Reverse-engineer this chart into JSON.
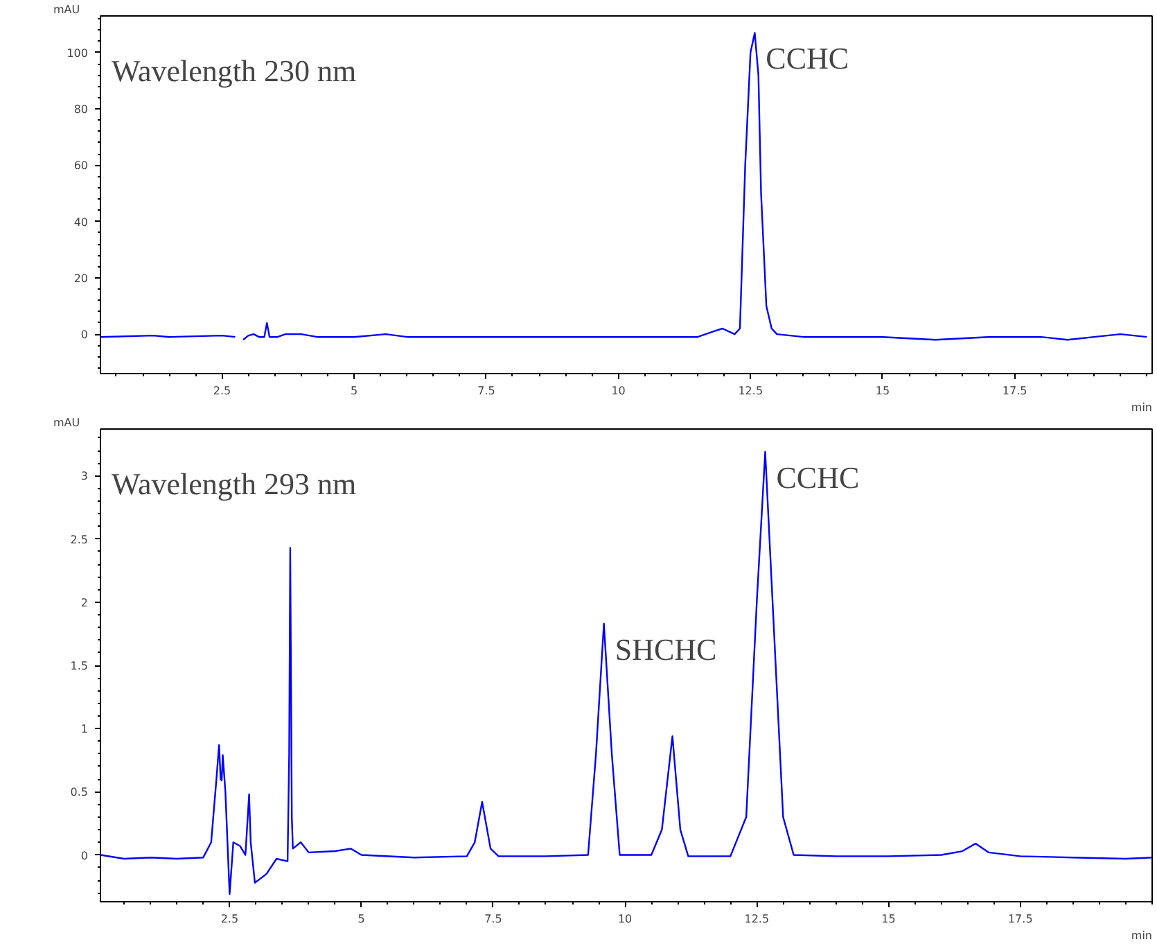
{
  "chart_data": [
    {
      "type": "line",
      "title": "Wavelength 230 nm",
      "xlabel": "min",
      "ylabel": "mAU",
      "x": [
        0.2,
        1.2,
        1.5,
        2.5,
        2.75,
        2.8,
        2.87,
        2.9,
        3.0,
        3.1,
        3.2,
        3.3,
        3.35,
        3.4,
        3.55,
        3.7,
        4.0,
        4.3,
        5.0,
        5.6,
        6.0,
        7.5,
        8.5,
        10.0,
        11.5,
        11.8,
        11.97,
        12.2,
        12.3,
        12.4,
        12.5,
        12.58,
        12.65,
        12.7,
        12.8,
        12.9,
        13.0,
        13.5,
        15.0,
        16.0,
        17.0,
        18.0,
        18.5,
        19.0,
        19.5,
        20.0
      ],
      "series": [
        {
          "color": "#0000ff",
          "values": [
            -1,
            -0.5,
            -1,
            -0.5,
            -1,
            null,
            null,
            -2,
            -0.5,
            0,
            -1,
            -1,
            4,
            -1,
            -1,
            0,
            0,
            -1,
            -1,
            0,
            -1,
            -1,
            -1,
            -1,
            -1,
            1,
            2,
            0,
            2,
            60,
            100,
            107,
            92,
            50,
            10,
            2,
            0,
            -1,
            -1,
            -2,
            -1,
            -1,
            -2,
            -1,
            0,
            -1
          ]
        }
      ],
      "xlim": [
        0.2,
        20.1
      ],
      "ylim": [
        -14,
        113
      ],
      "xticks": [
        2.5,
        5,
        7.5,
        10,
        12.5,
        15,
        17.5
      ],
      "yticks": [
        0,
        20,
        40,
        60,
        80,
        100
      ],
      "annotations": [
        {
          "text": "CCHC",
          "x": 12.58,
          "y": 107
        }
      ],
      "grid": false
    },
    {
      "type": "line",
      "title": "Wavelength 293 nm",
      "xlabel": "min",
      "ylabel": "mAU",
      "x": [
        0.05,
        0.5,
        1.0,
        1.5,
        2.0,
        2.15,
        2.25,
        2.3,
        2.33,
        2.35,
        2.37,
        2.42,
        2.5,
        2.57,
        2.7,
        2.8,
        2.87,
        2.9,
        2.98,
        3.2,
        3.39,
        3.6,
        3.63,
        3.65,
        3.68,
        3.7,
        3.85,
        4.0,
        4.5,
        4.8,
        5.0,
        6.0,
        7.0,
        7.15,
        7.29,
        7.45,
        7.6,
        8.5,
        9.3,
        9.45,
        9.6,
        9.75,
        9.9,
        10.5,
        10.7,
        10.9,
        11.05,
        11.2,
        12.0,
        12.3,
        12.5,
        12.66,
        12.8,
        13.0,
        13.2,
        14.0,
        15.0,
        16.0,
        16.4,
        16.65,
        16.9,
        17.5,
        18.5,
        19.5,
        20.0
      ],
      "series": [
        {
          "color": "#0000ff",
          "values": [
            0.0,
            -0.03,
            -0.02,
            -0.03,
            -0.02,
            0.1,
            0.6,
            0.87,
            0.6,
            0.59,
            0.79,
            0.5,
            -0.31,
            0.1,
            0.07,
            0.0,
            0.48,
            0.1,
            -0.22,
            -0.15,
            -0.03,
            -0.05,
            0.8,
            2.43,
            0.3,
            0.05,
            0.1,
            0.02,
            0.03,
            0.05,
            0.0,
            -0.02,
            -0.01,
            0.1,
            0.42,
            0.05,
            -0.01,
            -0.01,
            0.0,
            0.8,
            1.83,
            0.8,
            0.0,
            0.0,
            0.2,
            0.94,
            0.2,
            -0.01,
            -0.01,
            0.3,
            2.0,
            3.19,
            2.0,
            0.3,
            0.0,
            -0.01,
            -0.01,
            0.0,
            0.03,
            0.09,
            0.02,
            -0.01,
            -0.02,
            -0.03,
            -0.02
          ]
        }
      ],
      "xlim": [
        0.05,
        20.0
      ],
      "ylim": [
        -0.37,
        3.37
      ],
      "xticks": [
        2.5,
        5,
        7.5,
        10,
        12.5,
        15,
        17.5
      ],
      "yticks": [
        0,
        0.5,
        1,
        1.5,
        2,
        2.5,
        3
      ],
      "annotations": [
        {
          "text": "SHCHC",
          "x": 9.6,
          "y": 1.83
        },
        {
          "text": "CCHC",
          "x": 12.66,
          "y": 3.19
        }
      ],
      "grid": false
    }
  ]
}
